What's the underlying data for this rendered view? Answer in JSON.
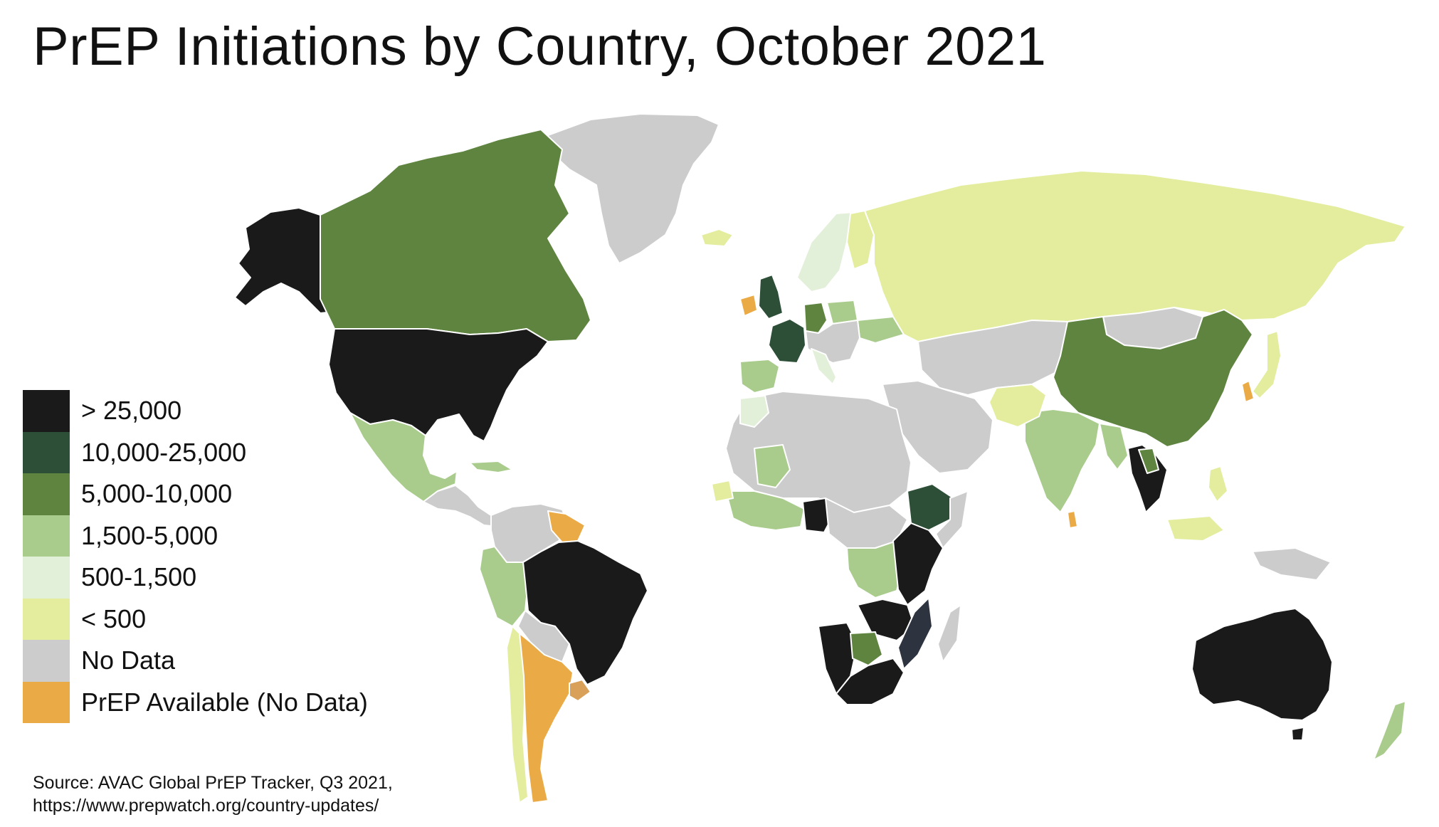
{
  "title": "PrEP Initiations by Country, October 2021",
  "legend": {
    "items": [
      {
        "label": "> 25,000",
        "color": "#1a1a1a"
      },
      {
        "label": "10,000-25,000",
        "color": "#2d4f37"
      },
      {
        "label": "5,000-10,000",
        "color": "#5e843f"
      },
      {
        "label": "1,500-5,000",
        "color": "#a9cc8d"
      },
      {
        "label": "500-1,500",
        "color": "#e2efd9"
      },
      {
        "label": "< 500",
        "color": "#e3ed9d"
      },
      {
        "label": "No Data",
        "color": "#cccccc"
      },
      {
        "label": "PrEP Available (No Data)",
        "color": "#eaaa46"
      }
    ]
  },
  "source": {
    "line1": "Source: AVAC Global PrEP Tracker, Q3 2021,",
    "line2": "https://www.prepwatch.org/country-updates/"
  }
}
